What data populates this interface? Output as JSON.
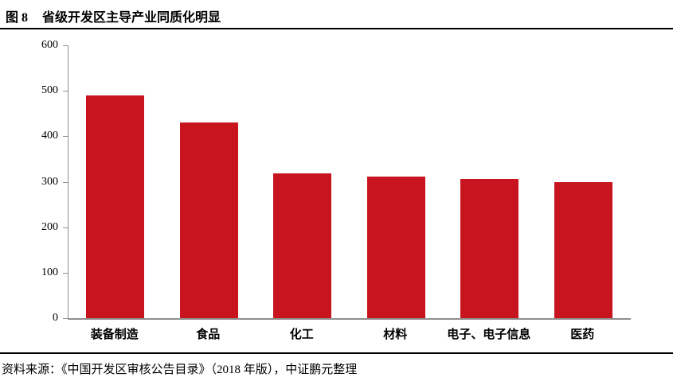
{
  "header": {
    "figure_label": "图 8",
    "title": "省级开发区主导产业同质化明显"
  },
  "footer": {
    "source": "资料来源：《中国开发区审核公告目录》（2018 年版），中证鹏元整理"
  },
  "chart_data": {
    "type": "bar",
    "title": "省级开发区主导产业同质化明显",
    "categories": [
      "装备制造",
      "食品",
      "化工",
      "材料",
      "电子、电子信息",
      "医药"
    ],
    "values": [
      490,
      430,
      318,
      311,
      307,
      300
    ],
    "xlabel": "",
    "ylabel": "",
    "ylim": [
      0,
      600
    ],
    "yticks": [
      0,
      100,
      200,
      300,
      400,
      500,
      600
    ],
    "grid": false,
    "legend": "none",
    "bar_color": "#c8141e",
    "axis_color": "#8f8f8f"
  }
}
